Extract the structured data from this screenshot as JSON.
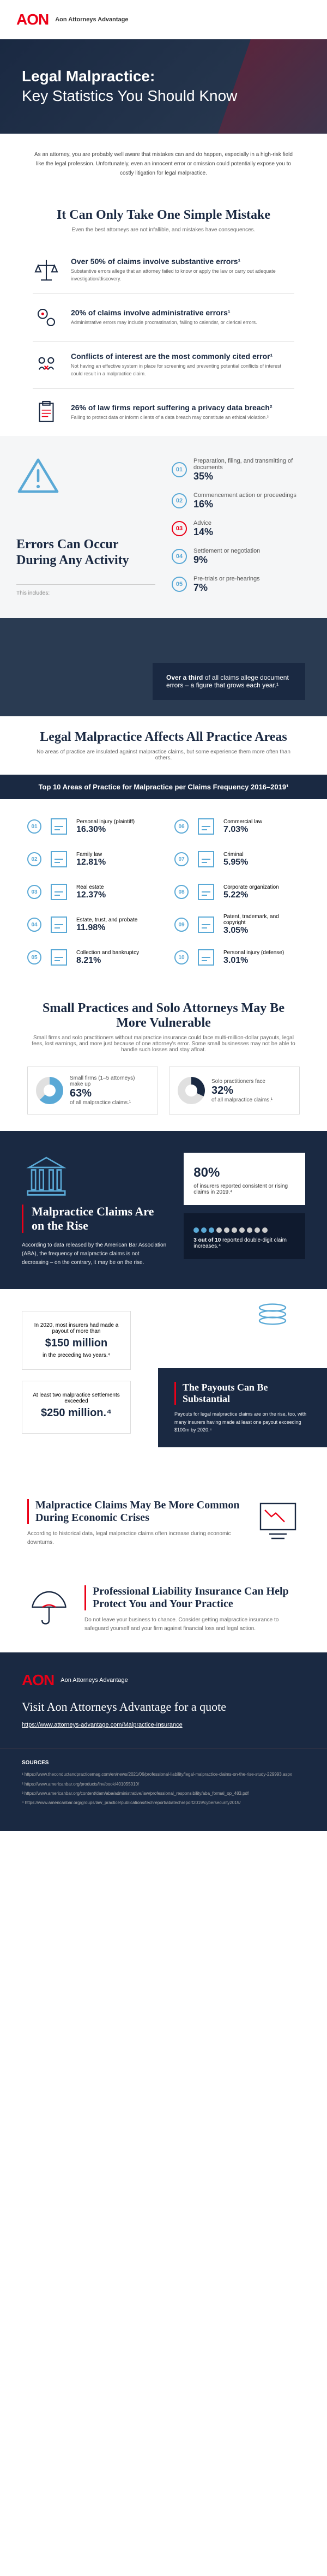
{
  "brand": {
    "name": "AON",
    "sub": "Aon Attorneys Advantage",
    "color": "#eb0017"
  },
  "hero": {
    "title_strong": "Legal Malpractice:",
    "title_rest": "Key Statistics You Should Know"
  },
  "intro": "As an attorney, you are probably well aware that mistakes can and do happen, especially in a high-risk field like the legal profession. Unfortunately, even an innocent error or omission could potentially expose you to costly litigation for legal malpractice.",
  "s1": {
    "title": "It Can Only Take One Simple Mistake",
    "sub": "Even the best attorneys are not infallible, and mistakes have consequences.",
    "stats": [
      {
        "head": "Over 50% of claims involve substantive errors¹",
        "body": "Substantive errors allege that an attorney failed to know or apply the law or carry out adequate investigation/discovery.",
        "icon": "scales"
      },
      {
        "head": "20% of claims involve administrative errors¹",
        "body": "Administrative errors may include procrastination, failing to calendar, or clerical errors.",
        "icon": "gears"
      },
      {
        "head": "Conflicts of interest are the most commonly cited error¹",
        "body": "Not having an effective system in place for screening and preventing potential conflicts of interest could result in a malpractice claim.",
        "icon": "conflict"
      },
      {
        "head": "26% of law firms report suffering a privacy data breach²",
        "body": "Failing to protect data or inform clients of a data breach may constitute an ethical violation.³",
        "icon": "clipboard"
      }
    ]
  },
  "errors": {
    "title": "Errors Can Occur During Any Activity",
    "includes": "This includes:",
    "items": [
      {
        "n": "01",
        "label": "Preparation, filing, and transmitting of documents",
        "pct": "35%"
      },
      {
        "n": "02",
        "label": "Commencement action or proceedings",
        "pct": "16%"
      },
      {
        "n": "03",
        "label": "Advice",
        "pct": "14%",
        "red": true
      },
      {
        "n": "04",
        "label": "Settlement or negotiation",
        "pct": "9%"
      },
      {
        "n": "05",
        "label": "Pre-trials or pre-hearings",
        "pct": "7%"
      }
    ]
  },
  "callout": {
    "strong": "Over a third",
    "rest": " of all claims allege document errors – a figure that grows each year.¹"
  },
  "areas": {
    "title": "Legal Malpractice Affects All Practice Areas",
    "sub": "No areas of practice are insulated against malpractice claims, but some experience them more often than others.",
    "band": "Top 10 Areas of Practice for Malpractice per Claims Frequency 2016–2019¹",
    "items": [
      {
        "r": "01",
        "name": "Personal injury (plaintiff)",
        "pct": "16.30%"
      },
      {
        "r": "02",
        "name": "Family law",
        "pct": "12.81%"
      },
      {
        "r": "03",
        "name": "Real estate",
        "pct": "12.37%"
      },
      {
        "r": "04",
        "name": "Estate, trust, and probate",
        "pct": "11.98%"
      },
      {
        "r": "05",
        "name": "Collection and bankruptcy",
        "pct": "8.21%"
      },
      {
        "r": "06",
        "name": "Commercial law",
        "pct": "7.03%"
      },
      {
        "r": "07",
        "name": "Criminal",
        "pct": "5.95%"
      },
      {
        "r": "08",
        "name": "Corporate organization",
        "pct": "5.22%"
      },
      {
        "r": "09",
        "name": "Patent, trademark, and copyright",
        "pct": "3.05%"
      },
      {
        "r": "10",
        "name": "Personal injury (defense)",
        "pct": "3.01%"
      }
    ]
  },
  "small": {
    "title": "Small Practices and Solo Attorneys May Be More Vulnerable",
    "sub": "Small firms and solo practitioners without malpractice insurance could face multi-million-dollar payouts, legal fees, lost earnings, and more just because of one attorney's error. Some small businesses may not be able to handle such losses and stay afloat.",
    "boxes": [
      {
        "lead": "Small firms (1–5 attorneys) make up",
        "big": "63%",
        "tail": "of all malpractice claims.¹",
        "fill": 63,
        "color": "#5aa9d6"
      },
      {
        "lead": "Solo practitioners face",
        "big": "32%",
        "tail": "of all malpractice claims.¹",
        "fill": 32,
        "color": "#1a2942"
      }
    ]
  },
  "rise": {
    "title": "Malpractice Claims Are on the Rise",
    "body": "According to data released by the American Bar Association (ABA), the frequency of malpractice claims is not decreasing – on the contrary, it may be on the rise.",
    "card1": {
      "big": "80%",
      "text": "of insurers reported consistent or rising claims in 2019.⁴"
    },
    "card2": {
      "lead": "3 out of 10",
      "text": "reported double-digit claim increases.⁴",
      "on": 3,
      "total": 10
    }
  },
  "payouts": {
    "card1": {
      "lead": "In 2020, most insurers had made a payout of more than",
      "big": "$150 million",
      "tail": "in the preceding two years.⁴"
    },
    "card2": {
      "lead": "At least two malpractice settlements exceeded",
      "big": "$250 million.⁴"
    },
    "box_title": "The Payouts Can Be Substantial",
    "box_body": "Payouts for legal malpractice claims are on the rise, too, with many insurers having made at least one payout exceeding $100m by 2020.⁴"
  },
  "econ": {
    "t1": "Malpractice Claims May Be More Common During Economic Crises",
    "b1": "According to historical data, legal malpractice claims often increase during economic downturns.",
    "t2": "Professional Liability Insurance Can Help Protect You and Your Practice",
    "b2": "Do not leave your business to chance. Consider getting malpractice insurance to safeguard yourself and your firm against financial loss and legal action."
  },
  "footer": {
    "title": "Visit Aon Attorneys Advantage for a quote",
    "link": "https://www.attorneys-advantage.com/Malpractice-Insurance"
  },
  "sources": {
    "title": "SOURCES",
    "items": [
      "¹ https://www.theconductandpracticemag.com/en/news/2021/06/professional-liability/legal-malpractice-claims-on-the-rise-study-229993.aspx",
      "² https://www.americanbar.org/products/inv/book/401055010/",
      "³ https://www.americanbar.org/content/dam/aba/administrative/law/professional_responsibility/aba_formal_op_483.pdf",
      "⁴ https://www.americanbar.org/groups/law_practice/publications/techreport/abatechreport2019/cybersecurity2019/"
    ]
  },
  "colors": {
    "navy": "#1a2942",
    "blue": "#5aa9d6",
    "red": "#eb0017",
    "grey": "#f5f6f7"
  }
}
